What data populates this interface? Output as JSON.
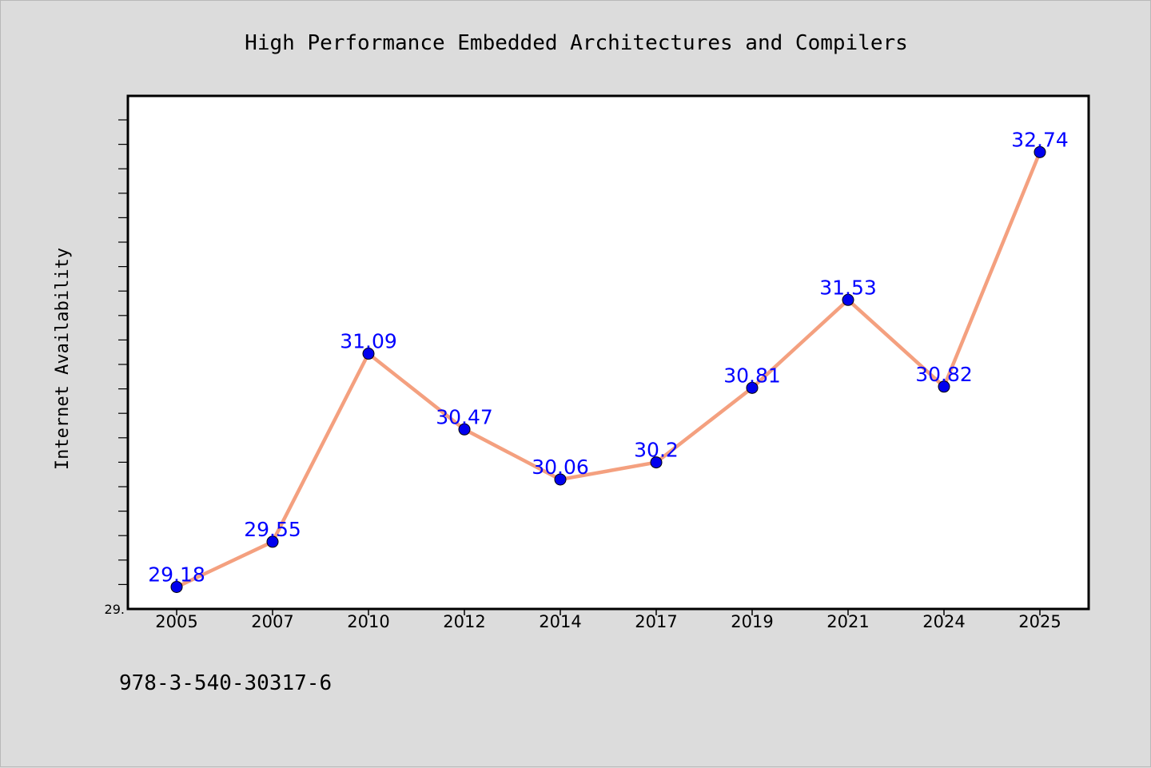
{
  "chart_data": {
    "type": "line",
    "title": "High Performance Embedded Architectures and Compilers",
    "xlabel": "",
    "ylabel": "Internet Availability",
    "categories": [
      "2005",
      "2007",
      "2010",
      "2012",
      "2014",
      "2017",
      "2019",
      "2021",
      "2024",
      "2025"
    ],
    "series": [
      {
        "values": [
          29.18,
          29.55,
          31.09,
          30.47,
          30.06,
          30.2,
          30.81,
          31.53,
          30.82,
          32.74
        ],
        "labels": [
          "29.18",
          "29.55",
          "31.09",
          "30.47",
          "30.06",
          "30.2",
          "30.81",
          "31.53",
          "30.82",
          "32.74"
        ]
      }
    ],
    "ylim": [
      29.0,
      33.2
    ],
    "y_min_label": "29.",
    "grid": false,
    "legend": "none",
    "colors": {
      "line": "#f4a07f",
      "marker": "#0000ee",
      "data_label": "#0000ff",
      "background": "#dcdcdc",
      "plot_background": "#ffffff"
    }
  },
  "footnote": "978-3-540-30317-6"
}
